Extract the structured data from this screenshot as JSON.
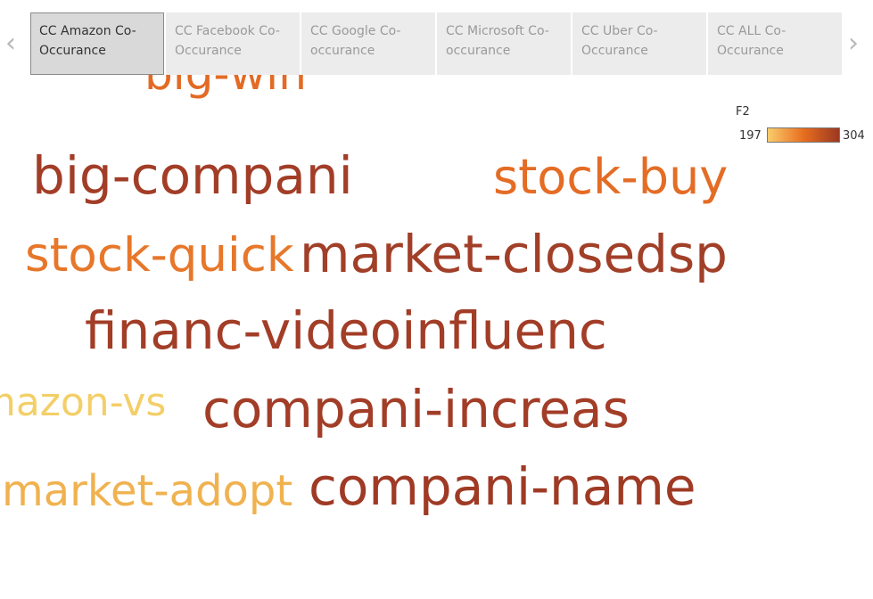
{
  "tabs": [
    {
      "label": "CC Amazon Co-\nOccurance",
      "active": true
    },
    {
      "label": "CC Facebook Co-\nOccurance",
      "active": false
    },
    {
      "label": "CC Google Co-\noccurance",
      "active": false
    },
    {
      "label": "CC Microsoft Co-\noccurance",
      "active": false
    },
    {
      "label": "CC Uber Co-\nOccurance",
      "active": false
    },
    {
      "label": "CC ALL Co-\nOccurance",
      "active": false
    }
  ],
  "nav": {
    "prev": "‹",
    "next": "›"
  },
  "legend": {
    "title": "F2",
    "min": "197",
    "max": "304",
    "colors": [
      "#f9cc6c",
      "#e86e1f",
      "#9b3822"
    ]
  },
  "words": [
    {
      "text": "big-win",
      "color": "#e36a24"
    },
    {
      "text": "big-compani",
      "color": "#a23d27"
    },
    {
      "text": "stock-buy",
      "color": "#e46c25"
    },
    {
      "text": "stock-quick",
      "color": "#e7772a"
    },
    {
      "text": "market-closedsp",
      "color": "#a13f28"
    },
    {
      "text": "financ-videoinfluenc",
      "color": "#a23d27"
    },
    {
      "text": "amazon-vs",
      "color": "#f3cf68"
    },
    {
      "text": "compani-increas",
      "color": "#a23d27"
    },
    {
      "text": "market-adopt",
      "color": "#f0b24f"
    },
    {
      "text": "compani-name",
      "color": "#9f3a25"
    }
  ]
}
